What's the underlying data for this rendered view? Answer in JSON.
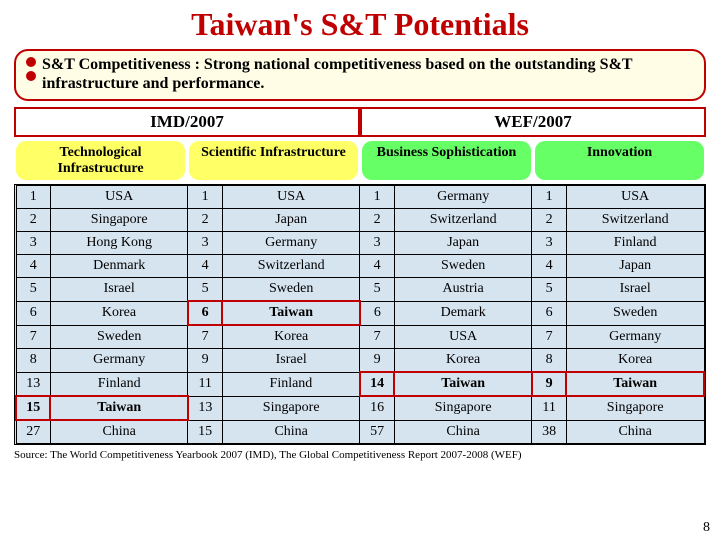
{
  "title": "Taiwan's S&T Potentials",
  "subtitle": "S&T Competitiveness : Strong national competitiveness based on the outstanding S&T infrastructure and performance.",
  "section_left": "IMD/2007",
  "section_right": "WEF/2007",
  "columns": [
    {
      "label": "Technological Infrastructure",
      "bg": "#ffff66"
    },
    {
      "label": "Scientific Infrastructure",
      "bg": "#ffff66"
    },
    {
      "label": "Business Sophistication",
      "bg": "#66ff66"
    },
    {
      "label": "Innovation",
      "bg": "#66ff66"
    }
  ],
  "rows": [
    {
      "r1": "1",
      "c1": "USA",
      "r2": "1",
      "c2": "USA",
      "r3": "1",
      "c3": "Germany",
      "r4": "1",
      "c4": "USA"
    },
    {
      "r1": "2",
      "c1": "Singapore",
      "r2": "2",
      "c2": "Japan",
      "r3": "2",
      "c3": "Switzerland",
      "r4": "2",
      "c4": "Switzerland"
    },
    {
      "r1": "3",
      "c1": "Hong Kong",
      "r2": "3",
      "c2": "Germany",
      "r3": "3",
      "c3": "Japan",
      "r4": "3",
      "c4": "Finland"
    },
    {
      "r1": "4",
      "c1": "Denmark",
      "r2": "4",
      "c2": "Switzerland",
      "r3": "4",
      "c3": "Sweden",
      "r4": "4",
      "c4": "Japan"
    },
    {
      "r1": "5",
      "c1": "Israel",
      "r2": "5",
      "c2": "Sweden",
      "r3": "5",
      "c3": "Austria",
      "r4": "5",
      "c4": "Israel"
    },
    {
      "r1": "6",
      "c1": "Korea",
      "r2": "6",
      "c2": "Taiwan",
      "r3": "6",
      "c3": "Demark",
      "r4": "6",
      "c4": "Sweden"
    },
    {
      "r1": "7",
      "c1": "Sweden",
      "r2": "7",
      "c2": "Korea",
      "r3": "7",
      "c3": "USA",
      "r4": "7",
      "c4": "Germany"
    },
    {
      "r1": "8",
      "c1": "Germany",
      "r2": "9",
      "c2": "Israel",
      "r3": "9",
      "c3": "Korea",
      "r4": "8",
      "c4": "Korea"
    },
    {
      "r1": "13",
      "c1": "Finland",
      "r2": "11",
      "c2": "Finland",
      "r3": "14",
      "c3": "Taiwan",
      "r4": "9",
      "c4": "Taiwan"
    },
    {
      "r1": "15",
      "c1": "Taiwan",
      "r2": "13",
      "c2": "Singapore",
      "r3": "16",
      "c3": "Singapore",
      "r4": "11",
      "c4": "Singapore"
    },
    {
      "r1": "27",
      "c1": "China",
      "r2": "15",
      "c2": "China",
      "r3": "57",
      "c3": "China",
      "r4": "38",
      "c4": "China"
    }
  ],
  "highlights": {
    "col1_row": 9,
    "col2_row": 5,
    "col3_row": 8,
    "col4_row": 8
  },
  "source": "Source: The World Competitiveness Yearbook 2007 (IMD), The Global Competitiveness Report 2007-2008 (WEF)",
  "pagenum": "8",
  "colors": {
    "title": "#c00000",
    "box_border": "#c00000",
    "box_bg": "#fffde6",
    "table_bg": "#d6e4f0",
    "highlight_border": "#c00000"
  }
}
